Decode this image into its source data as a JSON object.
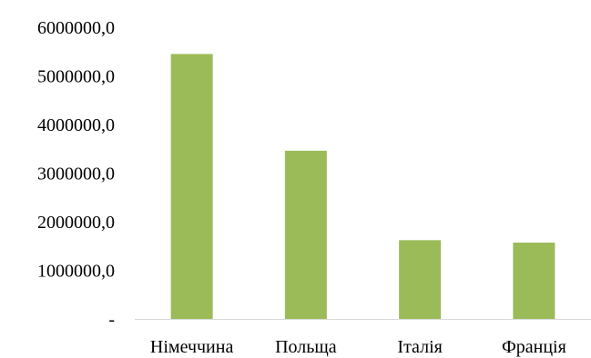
{
  "chart_data": {
    "type": "bar",
    "categories": [
      "Німеччина",
      "Польща",
      "Італія",
      "Франція"
    ],
    "values": [
      5450000,
      3460000,
      1620000,
      1570000
    ],
    "ylim": [
      0,
      6000000
    ],
    "yticks": [
      {
        "value": 0,
        "label": "-"
      },
      {
        "value": 1000000,
        "label": "1000000,0"
      },
      {
        "value": 2000000,
        "label": "2000000,0"
      },
      {
        "value": 3000000,
        "label": "3000000,0"
      },
      {
        "value": 4000000,
        "label": "4000000,0"
      },
      {
        "value": 5000000,
        "label": "5000000,0"
      },
      {
        "value": 6000000,
        "label": "6000000,0"
      }
    ],
    "bar_color": "#9bbb59",
    "axis_color": "#d9d9d9",
    "grid": false,
    "legend": "none"
  }
}
